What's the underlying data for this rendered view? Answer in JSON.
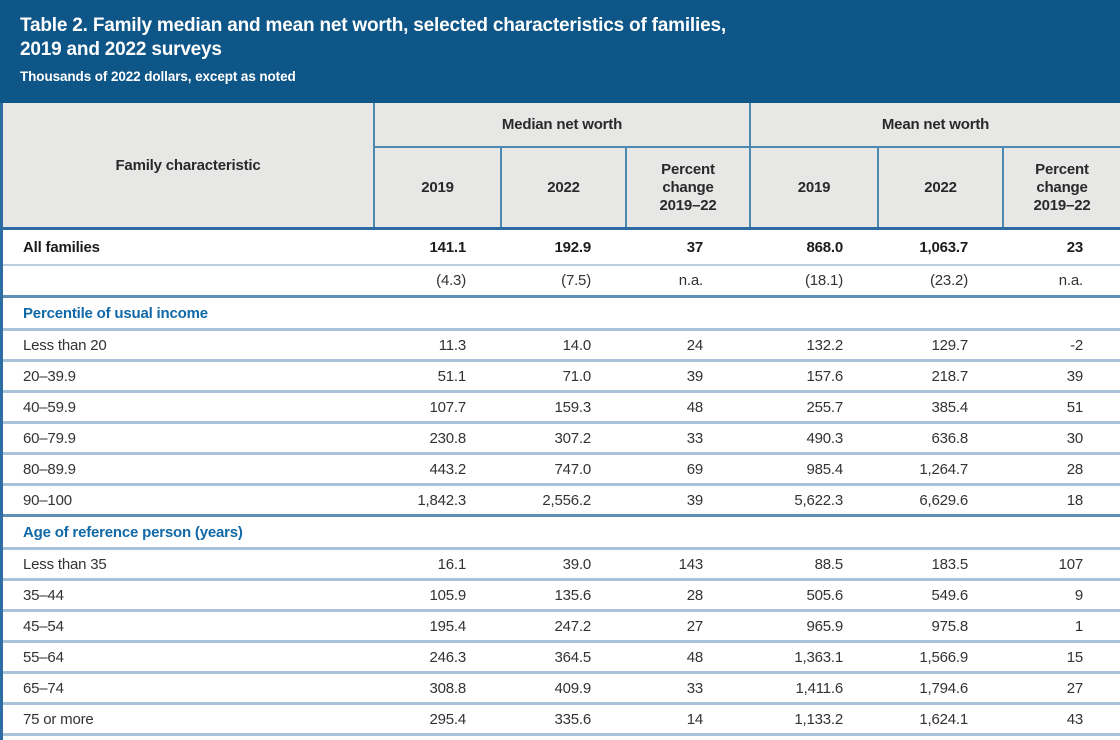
{
  "table": {
    "title_line1": "Table 2. Family median and mean net worth, selected characteristics of families,",
    "title_line2": "2019 and 2022 surveys",
    "subtitle": "Thousands of 2022 dollars, except as noted",
    "stub_header": "Family characteristic",
    "group_headers": [
      "Median net worth",
      "Mean net worth"
    ],
    "sub_headers": [
      "2019",
      "2022",
      "Percent change 2019–22",
      "2019",
      "2022",
      "Percent change 2019–22"
    ],
    "rows": [
      {
        "type": "data-bold",
        "label": "All families",
        "values": [
          "141.1",
          "192.9",
          "37",
          "868.0",
          "1,063.7",
          "23"
        ]
      },
      {
        "type": "se",
        "label": "",
        "values": [
          "(4.3)",
          "(7.5)",
          "n.a.",
          "(18.1)",
          "(23.2)",
          "n.a."
        ]
      },
      {
        "type": "section",
        "label": "Percentile of usual income",
        "values": []
      },
      {
        "type": "data",
        "label": "Less than 20",
        "values": [
          "11.3",
          "14.0",
          "24",
          "132.2",
          "129.7",
          "-2"
        ]
      },
      {
        "type": "data",
        "label": "20–39.9",
        "values": [
          "51.1",
          "71.0",
          "39",
          "157.6",
          "218.7",
          "39"
        ]
      },
      {
        "type": "data",
        "label": "40–59.9",
        "values": [
          "107.7",
          "159.3",
          "48",
          "255.7",
          "385.4",
          "51"
        ]
      },
      {
        "type": "data",
        "label": "60–79.9",
        "values": [
          "230.8",
          "307.2",
          "33",
          "490.3",
          "636.8",
          "30"
        ]
      },
      {
        "type": "data",
        "label": "80–89.9",
        "values": [
          "443.2",
          "747.0",
          "69",
          "985.4",
          "1,264.7",
          "28"
        ]
      },
      {
        "type": "data",
        "label": "90–100",
        "values": [
          "1,842.3",
          "2,556.2",
          "39",
          "5,622.3",
          "6,629.6",
          "18"
        ]
      },
      {
        "type": "section",
        "label": "Age of reference person (years)",
        "values": []
      },
      {
        "type": "data",
        "label": "Less than 35",
        "values": [
          "16.1",
          "39.0",
          "143",
          "88.5",
          "183.5",
          "107"
        ]
      },
      {
        "type": "data",
        "label": "35–44",
        "values": [
          "105.9",
          "135.6",
          "28",
          "505.6",
          "549.6",
          "9"
        ]
      },
      {
        "type": "data",
        "label": "45–54",
        "values": [
          "195.4",
          "247.2",
          "27",
          "965.9",
          "975.8",
          "1"
        ]
      },
      {
        "type": "data",
        "label": "55–64",
        "values": [
          "246.3",
          "364.5",
          "48",
          "1,363.1",
          "1,566.9",
          "15"
        ]
      },
      {
        "type": "data",
        "label": "65–74",
        "values": [
          "308.8",
          "409.9",
          "33",
          "1,411.6",
          "1,794.6",
          "27"
        ]
      },
      {
        "type": "data",
        "label": "75 or more",
        "values": [
          "295.4",
          "335.6",
          "14",
          "1,133.2",
          "1,624.1",
          "43"
        ]
      }
    ]
  },
  "colors": {
    "title_band_blue": "#0d5687",
    "header_gray": "#e7e8e6",
    "outer_border_blue": "#2e6da4",
    "header_grid_blue": "#4c88b0",
    "row_separator_blue": "#a9c4da",
    "section_separator_blue": "#5f8fb5",
    "section_text_blue": "#1169a7",
    "body_text": "#333335",
    "title_text": "#ffffff"
  }
}
